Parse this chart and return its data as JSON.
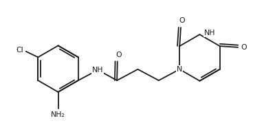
{
  "background_color": "#ffffff",
  "line_color": "#1a1a1a",
  "text_color": "#1a1a1a",
  "line_width": 1.3,
  "font_size": 7.8,
  "figsize": [
    3.68,
    1.79
  ],
  "dpi": 100,
  "xlim": [
    -0.3,
    9.5
  ],
  "ylim": [
    -2.2,
    2.8
  ]
}
